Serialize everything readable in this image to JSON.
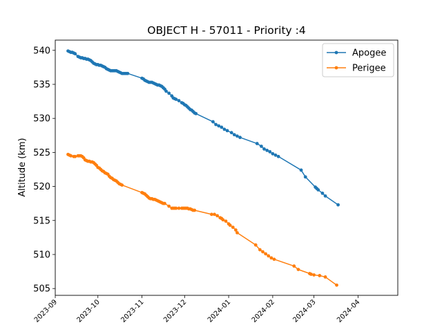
{
  "chart_data": {
    "type": "line",
    "title": "OBJECT H - 57011 - Priority :4",
    "xlabel": "",
    "ylabel": "Altitude (km)",
    "xlim": [
      "2023-09-01",
      "2024-04-29"
    ],
    "ylim": [
      504,
      541.5
    ],
    "x_ticks": [
      "2023-09",
      "2023-10",
      "2023-11",
      "2023-12",
      "2024-01",
      "2024-02",
      "2024-03",
      "2024-04"
    ],
    "y_ticks": [
      505,
      510,
      515,
      520,
      525,
      530,
      535,
      540
    ],
    "grid": false,
    "legend_position": "top-right",
    "series": [
      {
        "name": "Apogee",
        "color": "#1f77b4",
        "points": [
          [
            "2023-09-10",
            539.9
          ],
          [
            "2023-09-11",
            539.8
          ],
          [
            "2023-09-12",
            539.7
          ],
          [
            "2023-09-13",
            539.7
          ],
          [
            "2023-09-14",
            539.6
          ],
          [
            "2023-09-15",
            539.5
          ],
          [
            "2023-09-17",
            539.1
          ],
          [
            "2023-09-18",
            539.0
          ],
          [
            "2023-09-19",
            538.9
          ],
          [
            "2023-09-20",
            538.9
          ],
          [
            "2023-09-21",
            538.8
          ],
          [
            "2023-09-22",
            538.8
          ],
          [
            "2023-09-23",
            538.7
          ],
          [
            "2023-09-24",
            538.7
          ],
          [
            "2023-09-25",
            538.6
          ],
          [
            "2023-09-26",
            538.5
          ],
          [
            "2023-09-27",
            538.3
          ],
          [
            "2023-09-28",
            538.1
          ],
          [
            "2023-09-29",
            538.0
          ],
          [
            "2023-09-30",
            537.9
          ],
          [
            "2023-10-01",
            537.9
          ],
          [
            "2023-10-02",
            537.8
          ],
          [
            "2023-10-03",
            537.8
          ],
          [
            "2023-10-04",
            537.7
          ],
          [
            "2023-10-05",
            537.6
          ],
          [
            "2023-10-06",
            537.5
          ],
          [
            "2023-10-07",
            537.3
          ],
          [
            "2023-10-08",
            537.2
          ],
          [
            "2023-10-09",
            537.1
          ],
          [
            "2023-10-10",
            537.0
          ],
          [
            "2023-10-11",
            537.0
          ],
          [
            "2023-10-12",
            537.0
          ],
          [
            "2023-10-13",
            537.0
          ],
          [
            "2023-10-14",
            537.0
          ],
          [
            "2023-10-15",
            536.9
          ],
          [
            "2023-10-16",
            536.8
          ],
          [
            "2023-10-17",
            536.7
          ],
          [
            "2023-10-18",
            536.6
          ],
          [
            "2023-10-19",
            536.6
          ],
          [
            "2023-10-20",
            536.6
          ],
          [
            "2023-10-21",
            536.6
          ],
          [
            "2023-10-22",
            536.6
          ],
          [
            "2023-11-01",
            535.9
          ],
          [
            "2023-11-02",
            535.8
          ],
          [
            "2023-11-03",
            535.6
          ],
          [
            "2023-11-04",
            535.5
          ],
          [
            "2023-11-05",
            535.4
          ],
          [
            "2023-11-06",
            535.3
          ],
          [
            "2023-11-07",
            535.3
          ],
          [
            "2023-11-08",
            535.3
          ],
          [
            "2023-11-09",
            535.2
          ],
          [
            "2023-11-10",
            535.1
          ],
          [
            "2023-11-11",
            535.0
          ],
          [
            "2023-11-12",
            534.9
          ],
          [
            "2023-11-13",
            534.9
          ],
          [
            "2023-11-14",
            534.8
          ],
          [
            "2023-11-15",
            534.7
          ],
          [
            "2023-11-16",
            534.5
          ],
          [
            "2023-11-17",
            534.3
          ],
          [
            "2023-11-18",
            534.0
          ],
          [
            "2023-11-20",
            533.7
          ],
          [
            "2023-11-22",
            533.3
          ],
          [
            "2023-11-23",
            533.0
          ],
          [
            "2023-11-24",
            532.9
          ],
          [
            "2023-11-25",
            532.8
          ],
          [
            "2023-11-27",
            532.6
          ],
          [
            "2023-11-29",
            532.3
          ],
          [
            "2023-11-30",
            532.2
          ],
          [
            "2023-12-01",
            532.0
          ],
          [
            "2023-12-02",
            531.9
          ],
          [
            "2023-12-03",
            531.7
          ],
          [
            "2023-12-04",
            531.5
          ],
          [
            "2023-12-05",
            531.3
          ],
          [
            "2023-12-06",
            531.2
          ],
          [
            "2023-12-07",
            531.0
          ],
          [
            "2023-12-08",
            530.8
          ],
          [
            "2023-12-09",
            530.7
          ],
          [
            "2023-12-21",
            529.5
          ],
          [
            "2023-12-23",
            529.1
          ],
          [
            "2023-12-25",
            528.9
          ],
          [
            "2023-12-27",
            528.7
          ],
          [
            "2023-12-29",
            528.4
          ],
          [
            "2023-12-31",
            528.2
          ],
          [
            "2024-01-03",
            527.9
          ],
          [
            "2024-01-05",
            527.6
          ],
          [
            "2024-01-07",
            527.4
          ],
          [
            "2024-01-09",
            527.2
          ],
          [
            "2024-01-21",
            526.3
          ],
          [
            "2024-01-24",
            525.9
          ],
          [
            "2024-01-26",
            525.5
          ],
          [
            "2024-01-28",
            525.3
          ],
          [
            "2024-01-30",
            525.1
          ],
          [
            "2024-02-01",
            524.8
          ],
          [
            "2024-02-03",
            524.6
          ],
          [
            "2024-02-05",
            524.4
          ],
          [
            "2024-02-21",
            522.4
          ],
          [
            "2024-02-24",
            521.4
          ],
          [
            "2024-03-02",
            519.9
          ],
          [
            "2024-03-03",
            519.7
          ],
          [
            "2024-03-04",
            519.5
          ],
          [
            "2024-03-07",
            519.0
          ],
          [
            "2024-03-09",
            518.6
          ],
          [
            "2024-03-18",
            517.3
          ]
        ]
      },
      {
        "name": "Perigee",
        "color": "#ff7f0e",
        "points": [
          [
            "2023-09-10",
            524.7
          ],
          [
            "2023-09-11",
            524.6
          ],
          [
            "2023-09-12",
            524.5
          ],
          [
            "2023-09-14",
            524.4
          ],
          [
            "2023-09-15",
            524.4
          ],
          [
            "2023-09-17",
            524.5
          ],
          [
            "2023-09-18",
            524.5
          ],
          [
            "2023-09-19",
            524.5
          ],
          [
            "2023-09-20",
            524.4
          ],
          [
            "2023-09-21",
            524.2
          ],
          [
            "2023-09-22",
            523.9
          ],
          [
            "2023-09-23",
            523.8
          ],
          [
            "2023-09-24",
            523.7
          ],
          [
            "2023-09-25",
            523.7
          ],
          [
            "2023-09-26",
            523.6
          ],
          [
            "2023-09-27",
            523.6
          ],
          [
            "2023-09-28",
            523.5
          ],
          [
            "2023-09-29",
            523.3
          ],
          [
            "2023-09-30",
            523.1
          ],
          [
            "2023-10-01",
            522.8
          ],
          [
            "2023-10-02",
            522.7
          ],
          [
            "2023-10-03",
            522.5
          ],
          [
            "2023-10-04",
            522.3
          ],
          [
            "2023-10-05",
            522.2
          ],
          [
            "2023-10-06",
            522.0
          ],
          [
            "2023-10-07",
            521.9
          ],
          [
            "2023-10-08",
            521.8
          ],
          [
            "2023-10-09",
            521.5
          ],
          [
            "2023-10-10",
            521.3
          ],
          [
            "2023-10-11",
            521.2
          ],
          [
            "2023-10-12",
            521.0
          ],
          [
            "2023-10-13",
            520.9
          ],
          [
            "2023-10-14",
            520.8
          ],
          [
            "2023-10-15",
            520.6
          ],
          [
            "2023-10-16",
            520.4
          ],
          [
            "2023-10-17",
            520.3
          ],
          [
            "2023-10-18",
            520.2
          ],
          [
            "2023-11-01",
            519.1
          ],
          [
            "2023-11-02",
            519.0
          ],
          [
            "2023-11-03",
            518.9
          ],
          [
            "2023-11-04",
            518.7
          ],
          [
            "2023-11-05",
            518.5
          ],
          [
            "2023-11-06",
            518.3
          ],
          [
            "2023-11-07",
            518.2
          ],
          [
            "2023-11-08",
            518.2
          ],
          [
            "2023-11-09",
            518.1
          ],
          [
            "2023-11-10",
            518.1
          ],
          [
            "2023-11-11",
            518.0
          ],
          [
            "2023-11-12",
            517.9
          ],
          [
            "2023-11-13",
            517.8
          ],
          [
            "2023-11-14",
            517.7
          ],
          [
            "2023-11-15",
            517.6
          ],
          [
            "2023-11-16",
            517.5
          ],
          [
            "2023-11-17",
            517.5
          ],
          [
            "2023-11-20",
            517.1
          ],
          [
            "2023-11-22",
            516.8
          ],
          [
            "2023-11-23",
            516.8
          ],
          [
            "2023-11-24",
            516.8
          ],
          [
            "2023-11-25",
            516.8
          ],
          [
            "2023-11-27",
            516.8
          ],
          [
            "2023-11-29",
            516.8
          ],
          [
            "2023-11-30",
            516.8
          ],
          [
            "2023-12-01",
            516.8
          ],
          [
            "2023-12-02",
            516.8
          ],
          [
            "2023-12-03",
            516.8
          ],
          [
            "2023-12-04",
            516.7
          ],
          [
            "2023-12-05",
            516.7
          ],
          [
            "2023-12-06",
            516.6
          ],
          [
            "2023-12-07",
            516.5
          ],
          [
            "2023-12-08",
            516.5
          ],
          [
            "2023-12-20",
            515.9
          ],
          [
            "2023-12-22",
            515.9
          ],
          [
            "2023-12-24",
            515.7
          ],
          [
            "2023-12-26",
            515.4
          ],
          [
            "2023-12-27",
            515.3
          ],
          [
            "2023-12-28",
            515.1
          ],
          [
            "2023-12-30",
            514.9
          ],
          [
            "2024-01-01",
            514.5
          ],
          [
            "2024-01-02",
            514.3
          ],
          [
            "2024-01-04",
            514.0
          ],
          [
            "2024-01-06",
            513.6
          ],
          [
            "2024-01-07",
            513.2
          ],
          [
            "2024-01-20",
            511.4
          ],
          [
            "2024-01-23",
            510.7
          ],
          [
            "2024-01-25",
            510.4
          ],
          [
            "2024-01-27",
            510.1
          ],
          [
            "2024-01-29",
            509.8
          ],
          [
            "2024-01-31",
            509.5
          ],
          [
            "2024-02-02",
            509.3
          ],
          [
            "2024-02-16",
            508.3
          ],
          [
            "2024-02-19",
            507.8
          ],
          [
            "2024-02-27",
            507.2
          ],
          [
            "2024-02-28",
            507.1
          ],
          [
            "2024-03-01",
            507.0
          ],
          [
            "2024-03-05",
            506.9
          ],
          [
            "2024-03-09",
            506.7
          ],
          [
            "2024-03-17",
            505.5
          ]
        ]
      }
    ]
  }
}
